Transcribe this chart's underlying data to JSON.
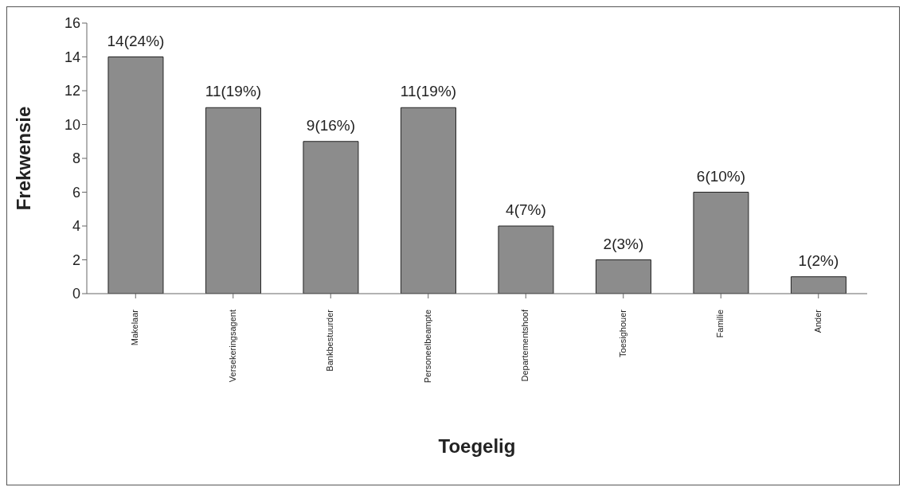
{
  "chart_data": {
    "type": "bar",
    "xlabel": "Toegelig",
    "ylabel": "Frekwensie",
    "categories": [
      "Makelaar",
      "Versekeringsagent",
      "Bankbestuurder",
      "Personeelbeampte",
      "Departementshoof",
      "Toesighouer",
      "Familie",
      "Ander"
    ],
    "values": [
      14,
      11,
      9,
      11,
      4,
      2,
      6,
      1
    ],
    "value_labels": [
      "14(24%)",
      "11(19%)",
      "9(16%)",
      "11(19%)",
      "4(7%)",
      "2(3%)",
      "6(10%)",
      "1(2%)"
    ],
    "color": "#8c8c8c",
    "ylim": [
      0,
      16
    ],
    "yticks": [
      0,
      2,
      4,
      6,
      8,
      10,
      12,
      14,
      16
    ],
    "grid": false,
    "legend": false
  }
}
